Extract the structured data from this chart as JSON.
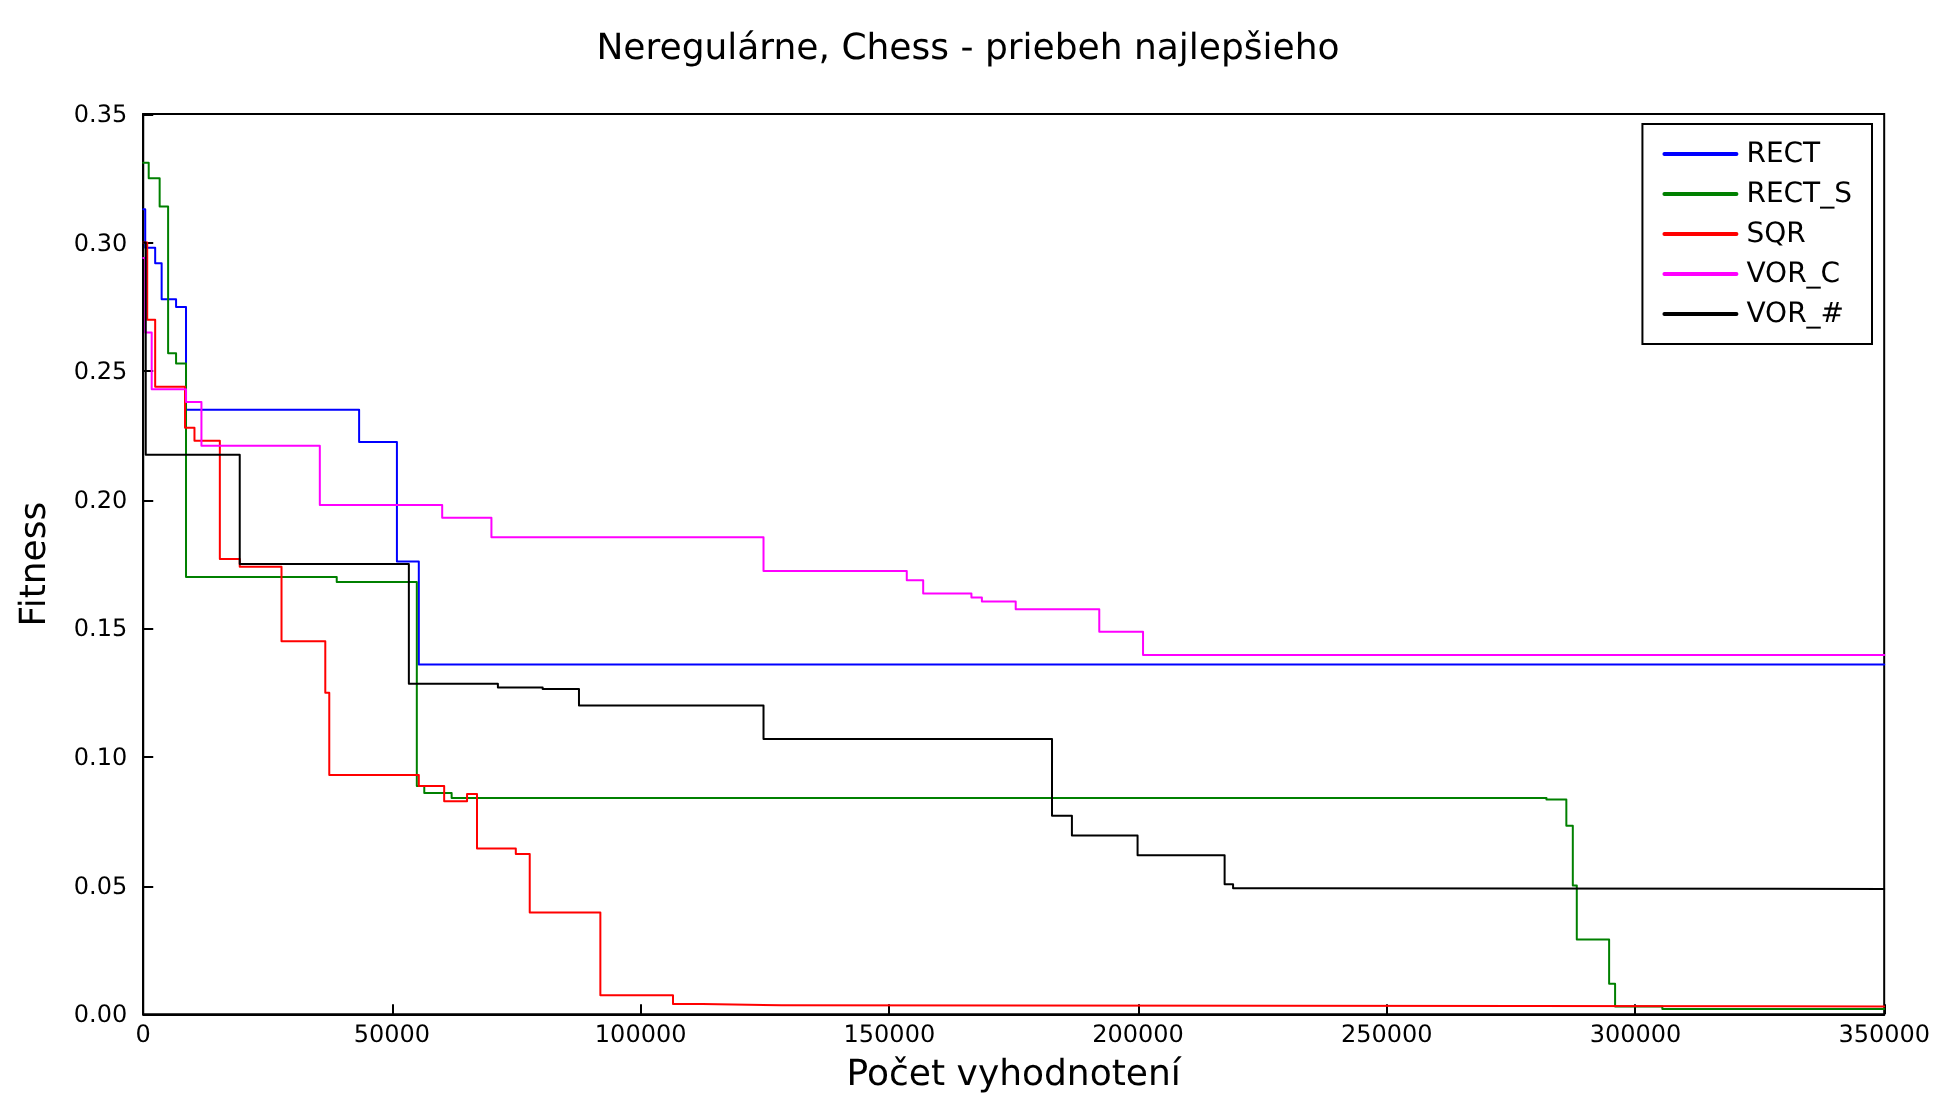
{
  "chart_data": {
    "type": "step",
    "title": "Neregulárne, Chess - priebeh najlepšieho",
    "xlabel": "Počet vyhodnotení",
    "ylabel": "Fitness",
    "xlim": [
      0,
      350000
    ],
    "xticks": [
      0,
      50000,
      100000,
      150000,
      200000,
      250000,
      300000,
      350000
    ],
    "ylim": [
      0,
      0.35
    ],
    "yticks": [
      {
        "value": 0,
        "label": "0.00"
      },
      {
        "value": 0.05,
        "label": "0.05"
      },
      {
        "value": 0.1,
        "label": "0.10"
      },
      {
        "value": 0.15,
        "label": "0.15"
      },
      {
        "value": 0.2,
        "label": "0.20"
      },
      {
        "value": 0.25,
        "label": "0.25"
      },
      {
        "value": 0.3,
        "label": "0.30"
      },
      {
        "value": 0.35,
        "label": "0.35"
      }
    ],
    "grid": false,
    "legend": "top right",
    "marker": "none",
    "line_style": "solid",
    "series": [
      {
        "name": "RECT",
        "color": "#0000ff",
        "x": [
          0,
          400,
          2400,
          3700,
          6600,
          8600,
          43400,
          51000,
          55400,
          350000
        ],
        "values": [
          0.313,
          0.298,
          0.292,
          0.278,
          0.275,
          0.235,
          0.2225,
          0.176,
          0.136,
          0.136
        ]
      },
      {
        "name": "RECT_S",
        "color": "#008000",
        "x": [
          0,
          1100,
          3300,
          5000,
          6600,
          8600,
          38900,
          55000,
          56500,
          62000,
          282100,
          286100,
          287400,
          288200,
          294700,
          295900,
          305400,
          350000
        ],
        "values": [
          0.331,
          0.325,
          0.314,
          0.257,
          0.253,
          0.17,
          0.168,
          0.0887,
          0.086,
          0.0841,
          0.0835,
          0.0733,
          0.05,
          0.029,
          0.0118,
          0.003,
          0.002,
          0.002
        ]
      },
      {
        "name": "SQR",
        "color": "#ff0000",
        "x": [
          0,
          800,
          2400,
          8400,
          10300,
          15400,
          19400,
          27800,
          36600,
          37400,
          55400,
          60500,
          65100,
          67100,
          74900,
          77700,
          91900,
          106500,
          112400,
          128300,
          350000
        ],
        "values": [
          0.3,
          0.27,
          0.244,
          0.228,
          0.223,
          0.177,
          0.174,
          0.145,
          0.125,
          0.093,
          0.0887,
          0.0828,
          0.0856,
          0.0644,
          0.0623,
          0.0395,
          0.0074,
          0.004,
          0.0035,
          0.003,
          0.003
        ]
      },
      {
        "name": "VOR_C",
        "color": "#ff00ff",
        "x": [
          0,
          400,
          1700,
          8600,
          11700,
          35500,
          60100,
          70000,
          124700,
          153500,
          156800,
          166500,
          168600,
          175400,
          192200,
          201000,
          350000
        ],
        "values": [
          0.294,
          0.265,
          0.243,
          0.238,
          0.221,
          0.198,
          0.193,
          0.1854,
          0.1723,
          0.1687,
          0.1636,
          0.162,
          0.1605,
          0.1574,
          0.1487,
          0.1397,
          0.1397
        ]
      },
      {
        "name": "VOR_#",
        "color": "#000000",
        "x": [
          0,
          500,
          19400,
          53400,
          71300,
          80300,
          87600,
          124700,
          182700,
          186700,
          199900,
          217400,
          219100,
          230000,
          350000
        ],
        "values": [
          0.3,
          0.2175,
          0.175,
          0.1285,
          0.127,
          0.1264,
          0.12,
          0.107,
          0.0772,
          0.0695,
          0.0618,
          0.0505,
          0.049,
          0.0487,
          0.0487
        ]
      }
    ]
  }
}
